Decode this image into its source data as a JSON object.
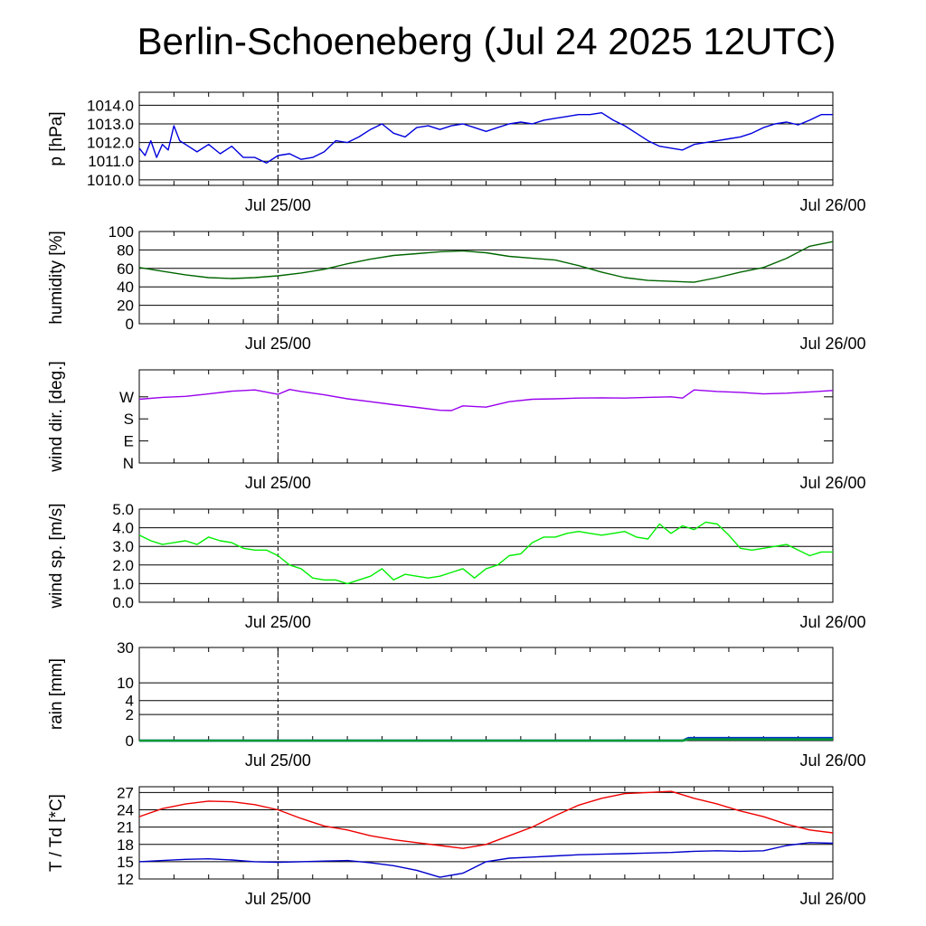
{
  "title": "Berlin-Schoeneberg (Jul 24 2025 12UTC)",
  "x_labels": [
    "Jul 25/00",
    "Jul 26/00"
  ],
  "chart_data": [
    {
      "type": "line",
      "ylabel": "p [hPa]",
      "ylim": [
        1009.7,
        1014.7
      ],
      "yticks": [
        "1010.0",
        "1011.0",
        "1012.0",
        "1013.0",
        "1014.0"
      ],
      "ytick_values": [
        1010,
        1011,
        1012,
        1013,
        1014
      ],
      "grid": true,
      "x_hours": [
        0,
        0.5,
        1,
        1.5,
        2,
        2.5,
        3,
        3.5,
        4,
        5,
        6,
        7,
        8,
        9,
        10,
        11,
        12,
        13,
        14,
        15,
        16,
        17,
        18,
        19,
        20,
        21,
        22,
        23,
        24,
        25,
        26,
        27,
        28,
        29,
        30,
        31,
        32,
        33,
        34,
        35,
        36,
        37,
        38,
        39,
        40,
        41,
        42,
        43,
        44,
        45,
        46,
        47,
        48,
        49,
        50,
        51,
        52,
        53,
        54,
        55,
        56,
        57,
        58,
        59,
        60
      ],
      "series": [
        {
          "color": "#0000dd",
          "values": [
            1011.7,
            1011.3,
            1012.1,
            1011.2,
            1011.9,
            1011.6,
            1012.9,
            1012.1,
            1011.9,
            1011.5,
            1011.9,
            1011.4,
            1011.8,
            1011.2,
            1011.2,
            1010.9,
            1011.3,
            1011.4,
            1011.1,
            1011.2,
            1011.5,
            1012.1,
            1012.0,
            1012.3,
            1012.7,
            1013.0,
            1012.5,
            1012.3,
            1012.8,
            1012.9,
            1012.7,
            1012.9,
            1013.0,
            1012.8,
            1012.6,
            1012.8,
            1013.0,
            1013.1,
            1013.0,
            1013.2,
            1013.3,
            1013.4,
            1013.5,
            1013.5,
            1013.6,
            1013.2,
            1012.9,
            1012.5,
            1012.1,
            1011.8,
            1011.7,
            1011.6,
            1011.9,
            1012.0,
            1012.1,
            1012.2,
            1012.3,
            1012.5,
            1012.8,
            1013.0,
            1013.1,
            1012.95,
            1013.2,
            1013.5,
            1013.5
          ]
        }
      ]
    },
    {
      "type": "line",
      "ylabel": "humidity [%]",
      "ylim": [
        0,
        100
      ],
      "yticks": [
        "0",
        "20",
        "40",
        "60",
        "80",
        "100"
      ],
      "ytick_values": [
        0,
        20,
        40,
        60,
        80,
        100
      ],
      "grid": true,
      "x_hours": [
        0,
        2,
        4,
        6,
        8,
        10,
        12,
        14,
        16,
        18,
        20,
        22,
        24,
        26,
        28,
        30,
        32,
        34,
        36,
        38,
        40,
        42,
        44,
        46,
        48,
        50,
        52,
        54,
        56,
        58,
        60
      ],
      "series": [
        {
          "color": "#006600",
          "values": [
            61,
            57,
            53,
            50,
            49,
            50,
            52,
            55,
            59,
            65,
            70,
            74,
            76,
            78,
            79,
            77,
            73,
            71,
            69,
            63,
            56,
            50,
            47,
            46,
            45,
            50,
            56,
            61,
            71,
            84,
            89
          ]
        }
      ]
    },
    {
      "type": "line",
      "ylabel": "wind dir. [deg.]",
      "ylim": [
        0,
        380
      ],
      "yticks": [
        "N",
        "E",
        "S",
        "W"
      ],
      "ytick_values": [
        0,
        90,
        180,
        270
      ],
      "grid": false,
      "x_hours": [
        0,
        2,
        4,
        6,
        8,
        10,
        12,
        13,
        14,
        16,
        18,
        20,
        22,
        24,
        26,
        27,
        28,
        30,
        32,
        34,
        36,
        38,
        40,
        42,
        44,
        46,
        47,
        48,
        50,
        52,
        54,
        56,
        58,
        60
      ],
      "series": [
        {
          "color": "#9900ee",
          "values": [
            260,
            268,
            272,
            282,
            293,
            298,
            280,
            300,
            292,
            278,
            262,
            250,
            238,
            227,
            215,
            214,
            233,
            228,
            250,
            260,
            262,
            265,
            266,
            265,
            268,
            270,
            265,
            298,
            292,
            288,
            282,
            285,
            290,
            296
          ]
        }
      ]
    },
    {
      "type": "line",
      "ylabel": "wind sp. [m/s]",
      "ylim": [
        0,
        5
      ],
      "yticks": [
        "0.0",
        "1.0",
        "2.0",
        "3.0",
        "4.0",
        "5.0"
      ],
      "ytick_values": [
        0,
        1,
        2,
        3,
        4,
        5
      ],
      "grid": true,
      "x_hours": [
        0,
        1,
        2,
        3,
        4,
        5,
        6,
        7,
        8,
        9,
        10,
        11,
        12,
        13,
        14,
        15,
        16,
        17,
        18,
        19,
        20,
        21,
        22,
        23,
        24,
        25,
        26,
        27,
        28,
        29,
        30,
        31,
        32,
        33,
        34,
        35,
        36,
        37,
        38,
        39,
        40,
        41,
        42,
        43,
        44,
        45,
        46,
        47,
        48,
        49,
        50,
        51,
        52,
        53,
        54,
        55,
        56,
        57,
        58,
        59,
        60
      ],
      "series": [
        {
          "color": "#00ee00",
          "values": [
            3.6,
            3.3,
            3.1,
            3.2,
            3.3,
            3.1,
            3.5,
            3.3,
            3.2,
            2.9,
            2.8,
            2.8,
            2.5,
            2.0,
            1.8,
            1.3,
            1.2,
            1.2,
            1.0,
            1.2,
            1.4,
            1.8,
            1.2,
            1.5,
            1.4,
            1.3,
            1.4,
            1.6,
            1.8,
            1.3,
            1.8,
            2.0,
            2.5,
            2.6,
            3.2,
            3.5,
            3.5,
            3.7,
            3.8,
            3.7,
            3.6,
            3.7,
            3.8,
            3.5,
            3.4,
            4.2,
            3.7,
            4.1,
            3.9,
            4.3,
            4.2,
            3.6,
            2.9,
            2.8,
            2.9,
            3.0,
            3.1,
            2.8,
            2.5,
            2.7,
            2.7
          ]
        }
      ]
    },
    {
      "type": "line",
      "ylabel": "rain [mm]",
      "ylim": [
        0,
        30
      ],
      "yticks": [
        "0",
        "2",
        "4",
        "10",
        "30"
      ],
      "ytick_values": [
        0,
        2,
        4,
        10,
        30
      ],
      "grid": true,
      "x_hours": [
        0,
        47,
        47.5,
        48,
        60
      ],
      "series": [
        {
          "color": "#0033cc",
          "values": [
            0,
            0,
            0.2,
            0.2,
            0.2
          ]
        },
        {
          "color": "#009933",
          "values": [
            0,
            0,
            0.1,
            0.1,
            0.1
          ]
        }
      ]
    },
    {
      "type": "line",
      "ylabel": "T / Td [*C]",
      "ylim": [
        12,
        28
      ],
      "yticks": [
        "12",
        "15",
        "18",
        "21",
        "24",
        "27"
      ],
      "ytick_values": [
        12,
        15,
        18,
        21,
        24,
        27
      ],
      "grid": true,
      "x_hours": [
        0,
        2,
        4,
        6,
        8,
        10,
        12,
        14,
        16,
        18,
        20,
        22,
        24,
        26,
        28,
        30,
        32,
        34,
        36,
        38,
        40,
        42,
        44,
        46,
        48,
        50,
        52,
        54,
        56,
        58,
        60
      ],
      "series": [
        {
          "color": "#ee0000",
          "values": [
            22.8,
            24.2,
            25.0,
            25.5,
            25.4,
            24.9,
            24.0,
            22.5,
            21.2,
            20.5,
            19.5,
            18.8,
            18.3,
            17.8,
            17.3,
            18.0,
            19.5,
            21.0,
            23.0,
            24.8,
            26.0,
            26.8,
            27.0,
            27.2,
            26.0,
            25.0,
            23.8,
            22.8,
            21.5,
            20.5,
            20.0
          ]
        },
        {
          "color": "#0000cc",
          "values": [
            15.0,
            15.2,
            15.4,
            15.5,
            15.3,
            15.0,
            14.9,
            15.0,
            15.1,
            15.2,
            14.8,
            14.3,
            13.5,
            12.3,
            13.0,
            15.0,
            15.6,
            15.8,
            16.0,
            16.2,
            16.3,
            16.4,
            16.5,
            16.6,
            16.8,
            16.9,
            16.8,
            16.9,
            17.8,
            18.3,
            18.2
          ]
        }
      ]
    }
  ]
}
